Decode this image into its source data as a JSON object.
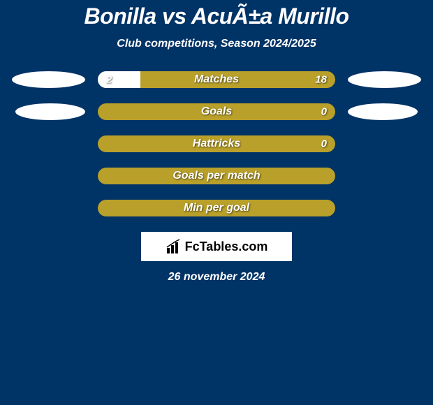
{
  "title": "Bonilla vs AcuÃ±a Murillo",
  "subtitle": "Club competitions, Season 2024/2025",
  "background_color": "#003366",
  "bar_color": "#b8a02a",
  "ellipse_color": "#ffffff",
  "rows": [
    {
      "label": "Matches",
      "left_val": "2",
      "right_val": "18",
      "left_ellipse_w": 105,
      "right_ellipse_w": 105,
      "white_pct": 18,
      "show_vals": true
    },
    {
      "label": "Goals",
      "left_val": "",
      "right_val": "0",
      "left_ellipse_w": 100,
      "right_ellipse_w": 100,
      "white_pct": 0,
      "show_vals": true
    },
    {
      "label": "Hattricks",
      "left_val": "",
      "right_val": "0",
      "left_ellipse_w": 0,
      "right_ellipse_w": 0,
      "white_pct": 0,
      "show_vals": true
    },
    {
      "label": "Goals per match",
      "left_val": "",
      "right_val": "",
      "left_ellipse_w": 0,
      "right_ellipse_w": 0,
      "white_pct": 0,
      "show_vals": false
    },
    {
      "label": "Min per goal",
      "left_val": "",
      "right_val": "",
      "left_ellipse_w": 0,
      "right_ellipse_w": 0,
      "white_pct": 0,
      "show_vals": false
    }
  ],
  "logo_text": "FcTables.com",
  "footer_date": "26 november 2024"
}
